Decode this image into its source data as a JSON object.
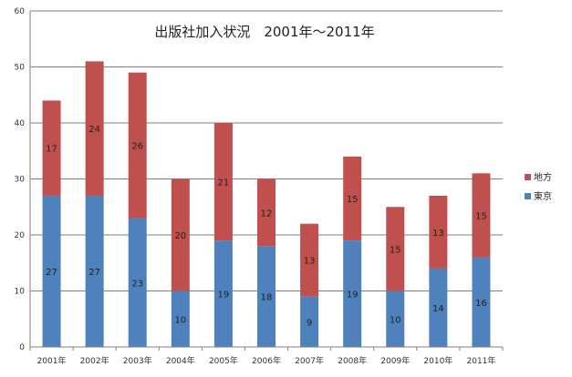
{
  "chart_data": {
    "type": "bar",
    "stacked": true,
    "title": "出版社加入状況　2001年～2011年",
    "categories": [
      "2001年",
      "2002年",
      "2003年",
      "2004年",
      "2005年",
      "2006年",
      "2007年",
      "2008年",
      "2009年",
      "2010年",
      "2011年"
    ],
    "series": [
      {
        "name": "東京",
        "color": "#4f81bd",
        "values": [
          27,
          27,
          23,
          10,
          19,
          18,
          9,
          19,
          10,
          14,
          16
        ]
      },
      {
        "name": "地方",
        "color": "#c0504d",
        "values": [
          17,
          24,
          26,
          20,
          21,
          12,
          13,
          15,
          15,
          13,
          15
        ]
      }
    ],
    "ylim": [
      0,
      60
    ],
    "yticks": [
      0,
      10,
      20,
      30,
      40,
      50,
      60
    ],
    "grid": true,
    "legend": "right",
    "xlabel": "",
    "ylabel": ""
  }
}
